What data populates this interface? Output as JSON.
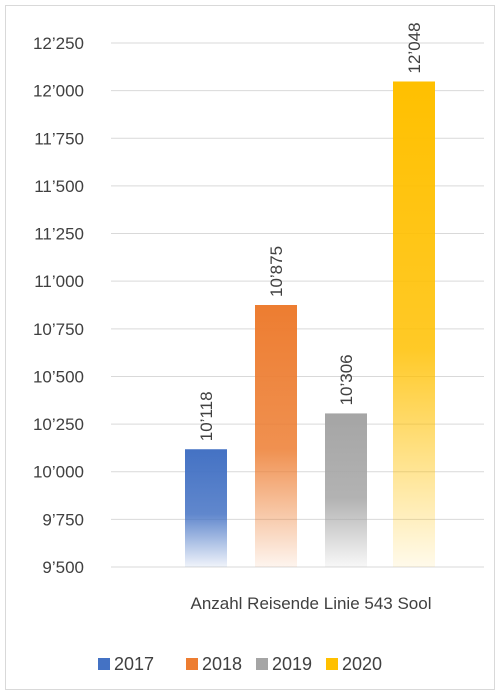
{
  "chart_data": {
    "type": "bar",
    "categories": [
      "Anzahl Reisende Linie 543 Sool"
    ],
    "series": [
      {
        "name": "2017",
        "values": [
          10118
        ],
        "label": "10’118",
        "color": "#4472c4"
      },
      {
        "name": "2018",
        "values": [
          10875
        ],
        "label": "10’875",
        "color": "#ed7d31"
      },
      {
        "name": "2019",
        "values": [
          10306
        ],
        "label": "10’306",
        "color": "#a5a5a5"
      },
      {
        "name": "2020",
        "values": [
          12048
        ],
        "label": "12’048",
        "color": "#ffc000"
      }
    ],
    "ylim": [
      9500,
      12250
    ],
    "y_ticks": [
      {
        "value": 9500,
        "label": "9’500"
      },
      {
        "value": 9750,
        "label": "9’750"
      },
      {
        "value": 10000,
        "label": "10’000"
      },
      {
        "value": 10250,
        "label": "10’250"
      },
      {
        "value": 10500,
        "label": "10’500"
      },
      {
        "value": 10750,
        "label": "10’750"
      },
      {
        "value": 11000,
        "label": "11’000"
      },
      {
        "value": 11250,
        "label": "11’250"
      },
      {
        "value": 11500,
        "label": "11’500"
      },
      {
        "value": 11750,
        "label": "11’750"
      },
      {
        "value": 12000,
        "label": "12’000"
      },
      {
        "value": 12250,
        "label": "12’250"
      }
    ],
    "grid": true,
    "legend": "bottom",
    "gradient_fill": true,
    "gridline_color": "#d9d9d9"
  }
}
